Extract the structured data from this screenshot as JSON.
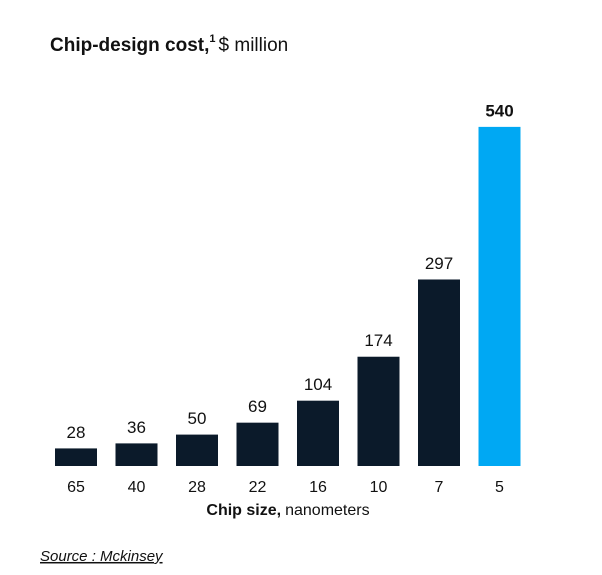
{
  "chart_data": {
    "type": "bar",
    "title": "Chip-design cost,",
    "title_note": "1",
    "title_unit": "$ million",
    "categories": [
      "65",
      "40",
      "28",
      "22",
      "16",
      "10",
      "7",
      "5"
    ],
    "values": [
      28,
      36,
      50,
      69,
      104,
      174,
      297,
      540
    ],
    "colors": [
      "#0b1a2a",
      "#0b1a2a",
      "#0b1a2a",
      "#0b1a2a",
      "#0b1a2a",
      "#0b1a2a",
      "#0b1a2a",
      "#00a8f3"
    ],
    "highlight": [
      false,
      false,
      false,
      false,
      false,
      false,
      false,
      true
    ],
    "x_label": "Chip size,",
    "x_label_unit": "nanometers",
    "source": "Source : Mckinsey"
  }
}
